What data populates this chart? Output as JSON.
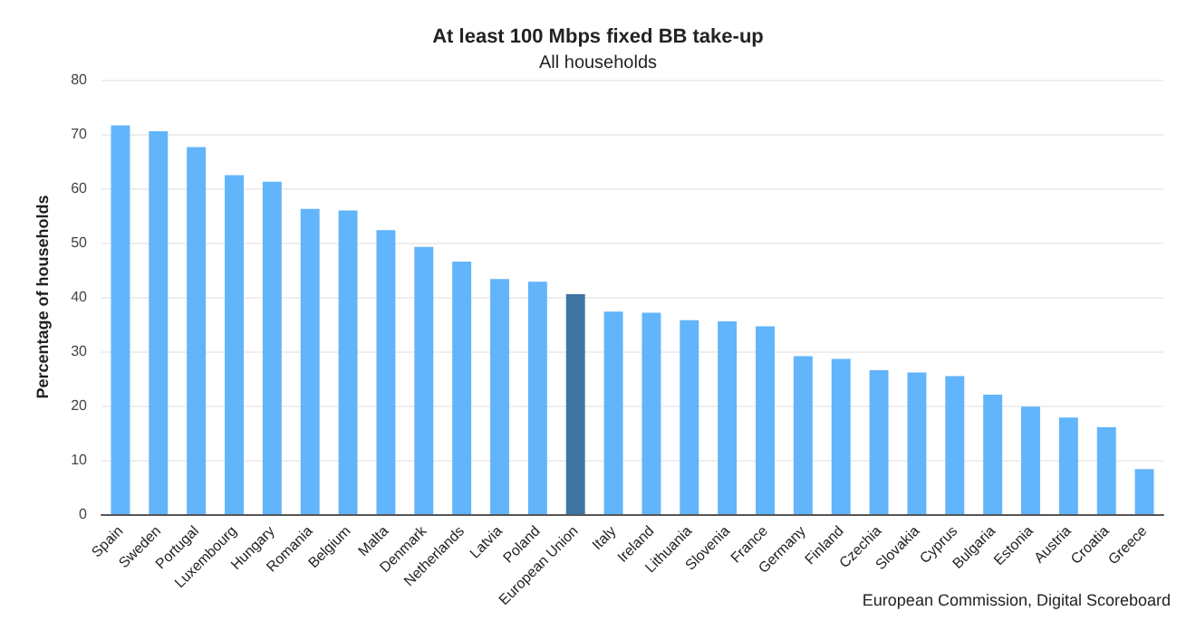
{
  "chart_data": {
    "type": "bar",
    "title": "At least 100 Mbps fixed BB take-up",
    "subtitle": "All households",
    "ylabel": "Percentage of households",
    "categories": [
      "Spain",
      "Sweden",
      "Portugal",
      "Luxembourg",
      "Hungary",
      "Romania",
      "Belgium",
      "Malta",
      "Denmark",
      "Netherlands",
      "Latvia",
      "Poland",
      "European Union",
      "Italy",
      "Ireland",
      "Lithuania",
      "Slovenia",
      "France",
      "Germany",
      "Finland",
      "Czechia",
      "Slovakia",
      "Cyprus",
      "Bulgaria",
      "Estonia",
      "Austria",
      "Croatia",
      "Greece"
    ],
    "values": [
      71.6,
      70.5,
      67.6,
      62.4,
      61.2,
      56.2,
      55.9,
      52.3,
      49.2,
      46.5,
      43.3,
      42.8,
      40.5,
      37.3,
      37.1,
      35.7,
      35.5,
      34.6,
      29.1,
      28.6,
      26.5,
      26.1,
      25.4,
      22.0,
      19.8,
      17.8,
      16.0,
      8.3
    ],
    "colors": [
      "#62b4fb",
      "#62b4fb",
      "#62b4fb",
      "#62b4fb",
      "#62b4fb",
      "#62b4fb",
      "#62b4fb",
      "#62b4fb",
      "#62b4fb",
      "#62b4fb",
      "#62b4fb",
      "#62b4fb",
      "#3f75a3",
      "#62b4fb",
      "#62b4fb",
      "#62b4fb",
      "#62b4fb",
      "#62b4fb",
      "#62b4fb",
      "#62b4fb",
      "#62b4fb",
      "#62b4fb",
      "#62b4fb",
      "#62b4fb",
      "#62b4fb",
      "#62b4fb",
      "#62b4fb",
      "#62b4fb"
    ],
    "ylim": [
      0,
      80
    ],
    "yticks": [
      0,
      10,
      20,
      30,
      40,
      50,
      60,
      70,
      80
    ],
    "grid": "y",
    "annotations": [
      "European Commission, Digital Scoreboard"
    ]
  }
}
